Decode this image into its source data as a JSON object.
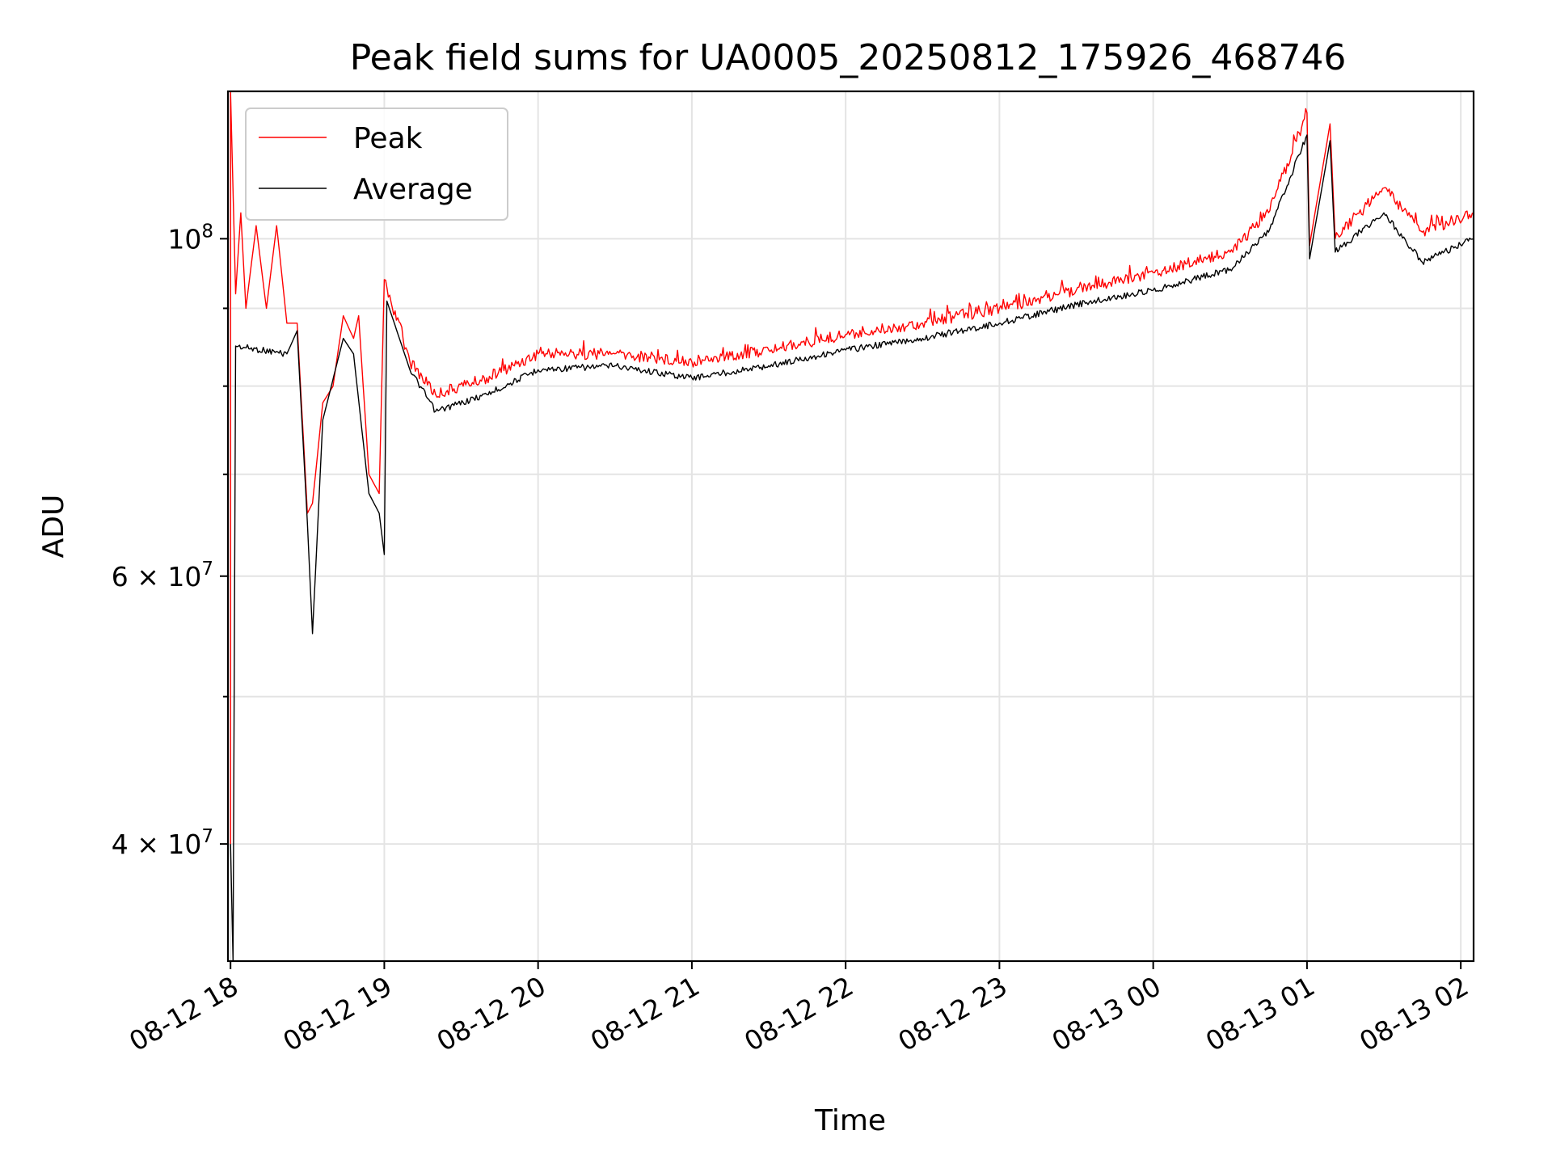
{
  "chart_data": {
    "type": "line",
    "title": "Peak field sums for UA0005_20250812_175926_468746",
    "xlabel": "Time",
    "ylabel": "ADU",
    "y_scale": "log",
    "grid": true,
    "legend_position": "top-left",
    "x_range": [
      "2025-08-12 17:59",
      "2025-08-13 02:05"
    ],
    "ylim": [
      33500000,
      125000000
    ],
    "x_ticks": [
      {
        "t": "2025-08-12 18:00",
        "label": "08-12 18"
      },
      {
        "t": "2025-08-12 19:00",
        "label": "08-12 19"
      },
      {
        "t": "2025-08-12 20:00",
        "label": "08-12 20"
      },
      {
        "t": "2025-08-12 21:00",
        "label": "08-12 21"
      },
      {
        "t": "2025-08-12 22:00",
        "label": "08-12 22"
      },
      {
        "t": "2025-08-12 23:00",
        "label": "08-12 23"
      },
      {
        "t": "2025-08-13 00:00",
        "label": "08-13 00"
      },
      {
        "t": "2025-08-13 01:00",
        "label": "08-13 01"
      },
      {
        "t": "2025-08-13 02:00",
        "label": "08-13 02"
      }
    ],
    "y_ticks": [
      {
        "value": 40000000,
        "base": "4 × 10",
        "exp": "7"
      },
      {
        "value": 60000000,
        "base": "6 × 10",
        "exp": "7"
      },
      {
        "value": 100000000,
        "base": "10",
        "exp": "8"
      }
    ],
    "y_minor_ticks": [
      50000000,
      70000000,
      80000000,
      90000000
    ],
    "series": [
      {
        "name": "Peak",
        "color": "#ff0000",
        "line_width": 1,
        "points": [
          [
            "2025-08-12 18:00",
            40000000
          ],
          [
            "2025-08-12 18:00",
            125000000
          ],
          [
            "2025-08-12 18:02",
            92000000
          ],
          [
            "2025-08-12 18:04",
            104000000
          ],
          [
            "2025-08-12 18:06",
            90000000
          ],
          [
            "2025-08-12 18:10",
            102000000
          ],
          [
            "2025-08-12 18:14",
            90000000
          ],
          [
            "2025-08-12 18:18",
            102000000
          ],
          [
            "2025-08-12 18:22",
            88000000
          ],
          [
            "2025-08-12 18:26",
            88000000
          ],
          [
            "2025-08-12 18:30",
            66000000
          ],
          [
            "2025-08-12 18:32",
            67000000
          ],
          [
            "2025-08-12 18:36",
            78000000
          ],
          [
            "2025-08-12 18:40",
            80000000
          ],
          [
            "2025-08-12 18:44",
            89000000
          ],
          [
            "2025-08-12 18:48",
            86000000
          ],
          [
            "2025-08-12 18:50",
            89000000
          ],
          [
            "2025-08-12 18:54",
            70000000
          ],
          [
            "2025-08-12 18:58",
            68000000
          ],
          [
            "2025-08-12 19:00",
            94000000
          ],
          [
            "2025-08-12 19:10",
            83000000
          ],
          [
            "2025-08-12 19:20",
            79000000
          ],
          [
            "2025-08-12 19:40",
            81000000
          ],
          [
            "2025-08-12 20:00",
            84000000
          ],
          [
            "2025-08-12 20:30",
            84000000
          ],
          [
            "2025-08-12 21:00",
            83000000
          ],
          [
            "2025-08-12 21:30",
            84500000
          ],
          [
            "2025-08-12 22:00",
            86500000
          ],
          [
            "2025-08-12 22:30",
            88000000
          ],
          [
            "2025-08-12 23:00",
            90000000
          ],
          [
            "2025-08-12 23:30",
            92500000
          ],
          [
            "2025-08-13 00:00",
            95000000
          ],
          [
            "2025-08-13 00:30",
            98000000
          ],
          [
            "2025-08-13 00:45",
            104000000
          ],
          [
            "2025-08-13 01:00",
            121000000
          ],
          [
            "2025-08-13 01:01",
            99000000
          ],
          [
            "2025-08-13 01:09",
            119000000
          ],
          [
            "2025-08-13 01:11",
            100000000
          ],
          [
            "2025-08-13 01:30",
            108000000
          ],
          [
            "2025-08-13 01:45",
            101000000
          ],
          [
            "2025-08-13 02:05",
            104000000
          ]
        ]
      },
      {
        "name": "Average",
        "color": "#000000",
        "line_width": 1,
        "points": [
          [
            "2025-08-12 18:00",
            40000000
          ],
          [
            "2025-08-12 18:01",
            33500000
          ],
          [
            "2025-08-12 18:02",
            85000000
          ],
          [
            "2025-08-12 18:22",
            84000000
          ],
          [
            "2025-08-12 18:26",
            87000000
          ],
          [
            "2025-08-12 18:30",
            65000000
          ],
          [
            "2025-08-12 18:32",
            55000000
          ],
          [
            "2025-08-12 18:36",
            76000000
          ],
          [
            "2025-08-12 18:44",
            86000000
          ],
          [
            "2025-08-12 18:48",
            84000000
          ],
          [
            "2025-08-12 18:54",
            68000000
          ],
          [
            "2025-08-12 18:58",
            66000000
          ],
          [
            "2025-08-12 19:00",
            62000000
          ],
          [
            "2025-08-12 19:01",
            91000000
          ],
          [
            "2025-08-12 19:10",
            82000000
          ],
          [
            "2025-08-12 19:20",
            77000000
          ],
          [
            "2025-08-12 19:40",
            79000000
          ],
          [
            "2025-08-12 20:00",
            82000000
          ],
          [
            "2025-08-12 20:30",
            82500000
          ],
          [
            "2025-08-12 21:00",
            81000000
          ],
          [
            "2025-08-12 21:30",
            82500000
          ],
          [
            "2025-08-12 22:00",
            84500000
          ],
          [
            "2025-08-12 22:30",
            86000000
          ],
          [
            "2025-08-12 23:00",
            88000000
          ],
          [
            "2025-08-12 23:30",
            90500000
          ],
          [
            "2025-08-13 00:00",
            92500000
          ],
          [
            "2025-08-13 00:30",
            95500000
          ],
          [
            "2025-08-13 00:45",
            101000000
          ],
          [
            "2025-08-13 01:00",
            117000000
          ],
          [
            "2025-08-13 01:01",
            97000000
          ],
          [
            "2025-08-13 01:09",
            116000000
          ],
          [
            "2025-08-13 01:11",
            98000000
          ],
          [
            "2025-08-13 01:30",
            104000000
          ],
          [
            "2025-08-13 01:45",
            96500000
          ],
          [
            "2025-08-13 02:05",
            100000000
          ]
        ]
      }
    ]
  }
}
